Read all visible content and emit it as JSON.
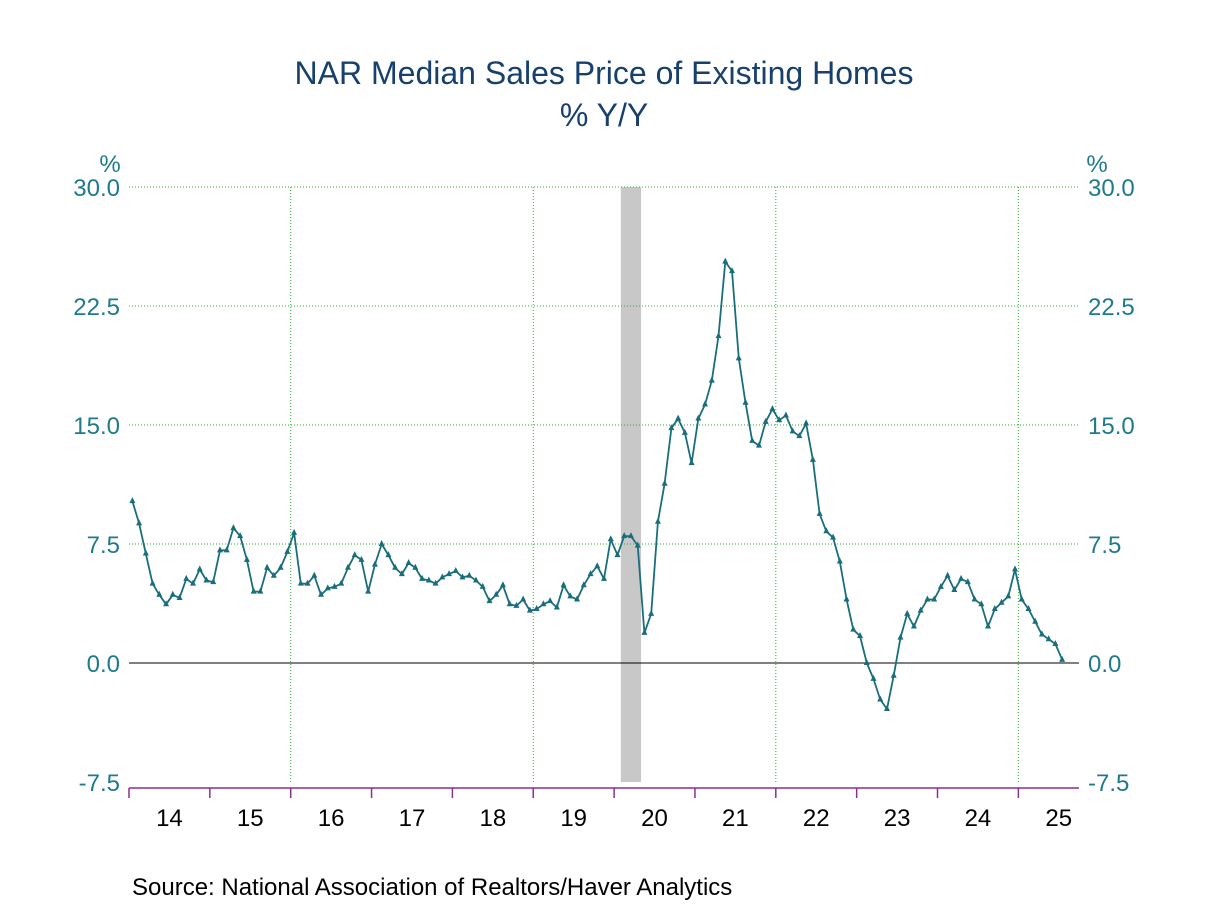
{
  "chart_data": {
    "type": "line",
    "title": "NAR Median Sales Price of Existing Homes",
    "subtitle": "% Y/Y",
    "left_unit": "%",
    "right_unit": "%",
    "ylim": [
      -7.5,
      30.0
    ],
    "yticks": [
      "30.0",
      "22.5",
      "15.0",
      "7.5",
      "0.0",
      "-7.5"
    ],
    "ytick_values": [
      30.0,
      22.5,
      15.0,
      7.5,
      0.0,
      -7.5
    ],
    "xlim": [
      2014.0,
      2025.75
    ],
    "xtick_labels": [
      "14",
      "15",
      "16",
      "17",
      "18",
      "19",
      "20",
      "21",
      "22",
      "23",
      "24",
      "25"
    ],
    "grid_years": [
      2016,
      2019,
      2022,
      2025
    ],
    "recession": {
      "start": "2020-02",
      "end": "2020-04"
    },
    "source": "Source:  National Association of Realtors/Haver Analytics",
    "colors": {
      "line": "#1a6e7c",
      "title": "#17406d",
      "ticks": "#1f7a8c",
      "grid": "#2eae2e",
      "recession": "#c8c8c8",
      "xaxis": "#8b2f8b"
    },
    "series": [
      {
        "start": "2014-01",
        "values": [
          10.2,
          8.8,
          6.9,
          5.0,
          4.3,
          3.7,
          4.3,
          4.1,
          5.3,
          5.0,
          5.9,
          5.2,
          5.1,
          7.1,
          7.1,
          8.5,
          8.0,
          6.5,
          4.5,
          4.5,
          6.0,
          5.5,
          6.0,
          7.0,
          8.2,
          5.0,
          5.0,
          5.5,
          4.3,
          4.7,
          4.8,
          5.0,
          6.0,
          6.8,
          6.5,
          4.5,
          6.2,
          7.5,
          6.8,
          6.0,
          5.6,
          6.3,
          6.0,
          5.3,
          5.2,
          5.0,
          5.4,
          5.6,
          5.8,
          5.4,
          5.5,
          5.2,
          4.8,
          3.9,
          4.3,
          4.9,
          3.7,
          3.6,
          4.0,
          3.3,
          3.4,
          3.7,
          3.9,
          3.5,
          4.9,
          4.2,
          4.0,
          4.9,
          5.6,
          6.1,
          5.3,
          7.8,
          6.8,
          8.0,
          8.0,
          7.4,
          1.9,
          3.1,
          8.9,
          11.3,
          14.8,
          15.4,
          14.5,
          12.6,
          15.4,
          16.3,
          17.8,
          20.6,
          25.3,
          24.7,
          19.2,
          16.4,
          14.0,
          13.7,
          15.2,
          16.0,
          15.3,
          15.6,
          14.6,
          14.3,
          15.1,
          12.8,
          9.4,
          8.3,
          7.9,
          6.4,
          4.0,
          2.1,
          1.7,
          0.0,
          -1.0,
          -2.3,
          -2.9,
          -0.8,
          1.6,
          3.1,
          2.3,
          3.3,
          4.0,
          4.0,
          4.8,
          5.5,
          4.6,
          5.3,
          5.1,
          4.0,
          3.7,
          2.3,
          3.4,
          3.8,
          4.2,
          5.9,
          4.0,
          3.4,
          2.6,
          1.8,
          1.5,
          1.2,
          0.2
        ]
      }
    ]
  }
}
